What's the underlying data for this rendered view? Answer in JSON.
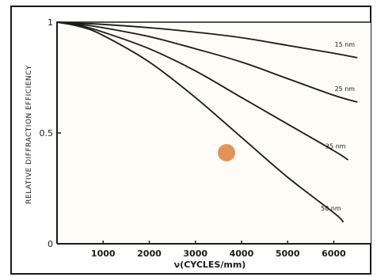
{
  "chart_data": {
    "type": "line",
    "title": "",
    "xlabel": "ν(CYCLES/mm)",
    "ylabel": "RELATIVE DIFFRACTION EFFICIENCY",
    "xlim": [
      0,
      6800
    ],
    "ylim": [
      0,
      1
    ],
    "x_ticks": [
      1000,
      2000,
      3000,
      4000,
      5000,
      6000
    ],
    "x_tick_labels": [
      "1000",
      "2000",
      "3000",
      "4000",
      "5000",
      "6000"
    ],
    "y_ticks": [
      0,
      0.5,
      1
    ],
    "y_tick_labels": [
      "0",
      "0.5",
      "1"
    ],
    "grid": false,
    "legend": "none (series labeled at line ends)",
    "series": [
      {
        "name": "15 nm",
        "x": [
          0,
          500,
          1000,
          2000,
          3000,
          4000,
          5000,
          6000,
          6500
        ],
        "y": [
          1.0,
          0.995,
          0.99,
          0.975,
          0.955,
          0.93,
          0.895,
          0.86,
          0.84
        ]
      },
      {
        "name": "25 nm",
        "x": [
          0,
          500,
          1000,
          2000,
          3000,
          4000,
          5000,
          6000,
          6500
        ],
        "y": [
          1.0,
          0.99,
          0.975,
          0.935,
          0.88,
          0.82,
          0.745,
          0.67,
          0.64
        ]
      },
      {
        "name": "35 nm",
        "x": [
          0,
          500,
          1000,
          2000,
          3000,
          4000,
          5000,
          6000,
          6300
        ],
        "y": [
          1.0,
          0.985,
          0.955,
          0.88,
          0.78,
          0.66,
          0.54,
          0.42,
          0.38
        ]
      },
      {
        "name": "50 nm",
        "x": [
          0,
          500,
          1000,
          2000,
          3000,
          4000,
          5000,
          6000,
          6200
        ],
        "y": [
          1.0,
          0.98,
          0.94,
          0.82,
          0.66,
          0.48,
          0.3,
          0.14,
          0.1
        ]
      }
    ]
  },
  "colors": {
    "ink": "#1a1a1a",
    "paper": "#fdfcf7",
    "stain": "#e3935a"
  }
}
